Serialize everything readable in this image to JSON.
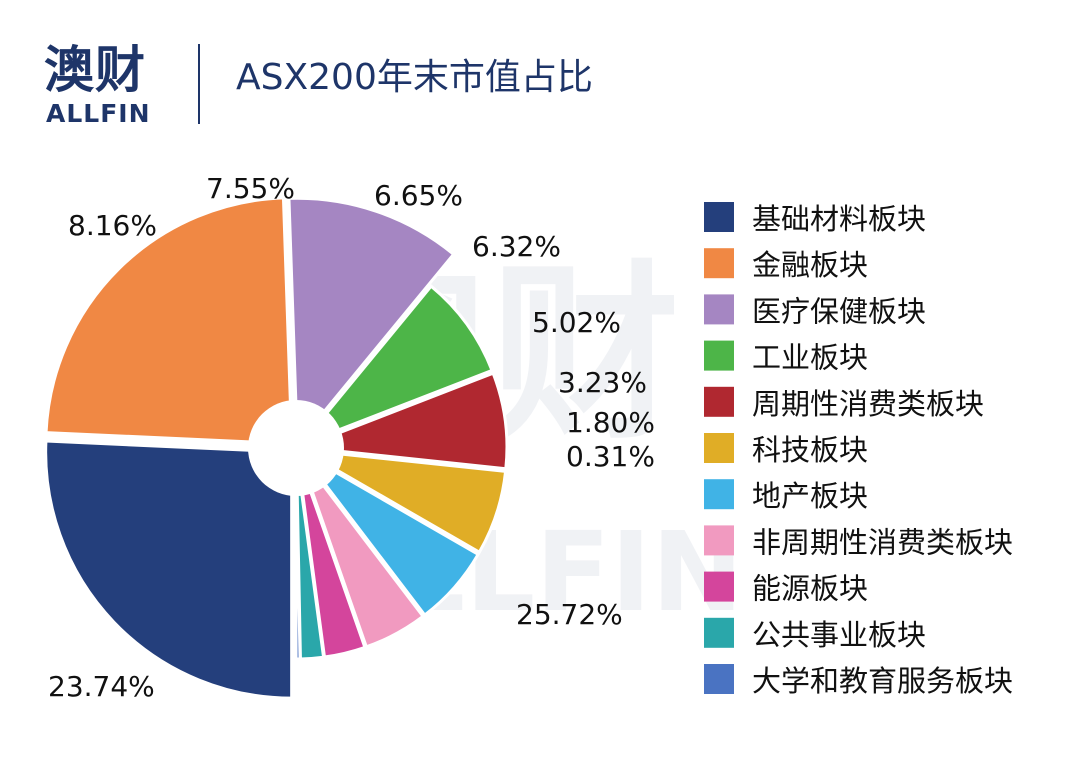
{
  "brand": {
    "cn": "澳财",
    "en": "ALLFIN"
  },
  "watermark": {
    "cn": "澳财",
    "en": "ALLFIN"
  },
  "chart_data": {
    "type": "pie",
    "title": "ASX200年末市值占比",
    "categories": [
      "基础材料板块",
      "金融板块",
      "医疗保健板块",
      "工业板块",
      "周期性消费类板块",
      "科技板块",
      "地产板块",
      "非周期性消费类板块",
      "能源板块",
      "公共事业板块",
      "大学和教育服务板块"
    ],
    "values": [
      25.72,
      23.74,
      11.5,
      8.16,
      7.55,
      6.65,
      6.32,
      5.02,
      3.23,
      1.8,
      0.31
    ],
    "labels": [
      "25.72%",
      "23.74%",
      "",
      "8.16%",
      "7.55%",
      "6.65%",
      "6.32%",
      "5.02%",
      "3.23%",
      "1.80%",
      "0.31%"
    ],
    "colors": [
      "#243f7c",
      "#f08844",
      "#a586c2",
      "#4db548",
      "#b02830",
      "#e0ad26",
      "#40b3e6",
      "#f19ac0",
      "#d4459c",
      "#2aa7aa",
      "#4a73c2"
    ],
    "legend_position": "right",
    "donut_hole": true
  }
}
